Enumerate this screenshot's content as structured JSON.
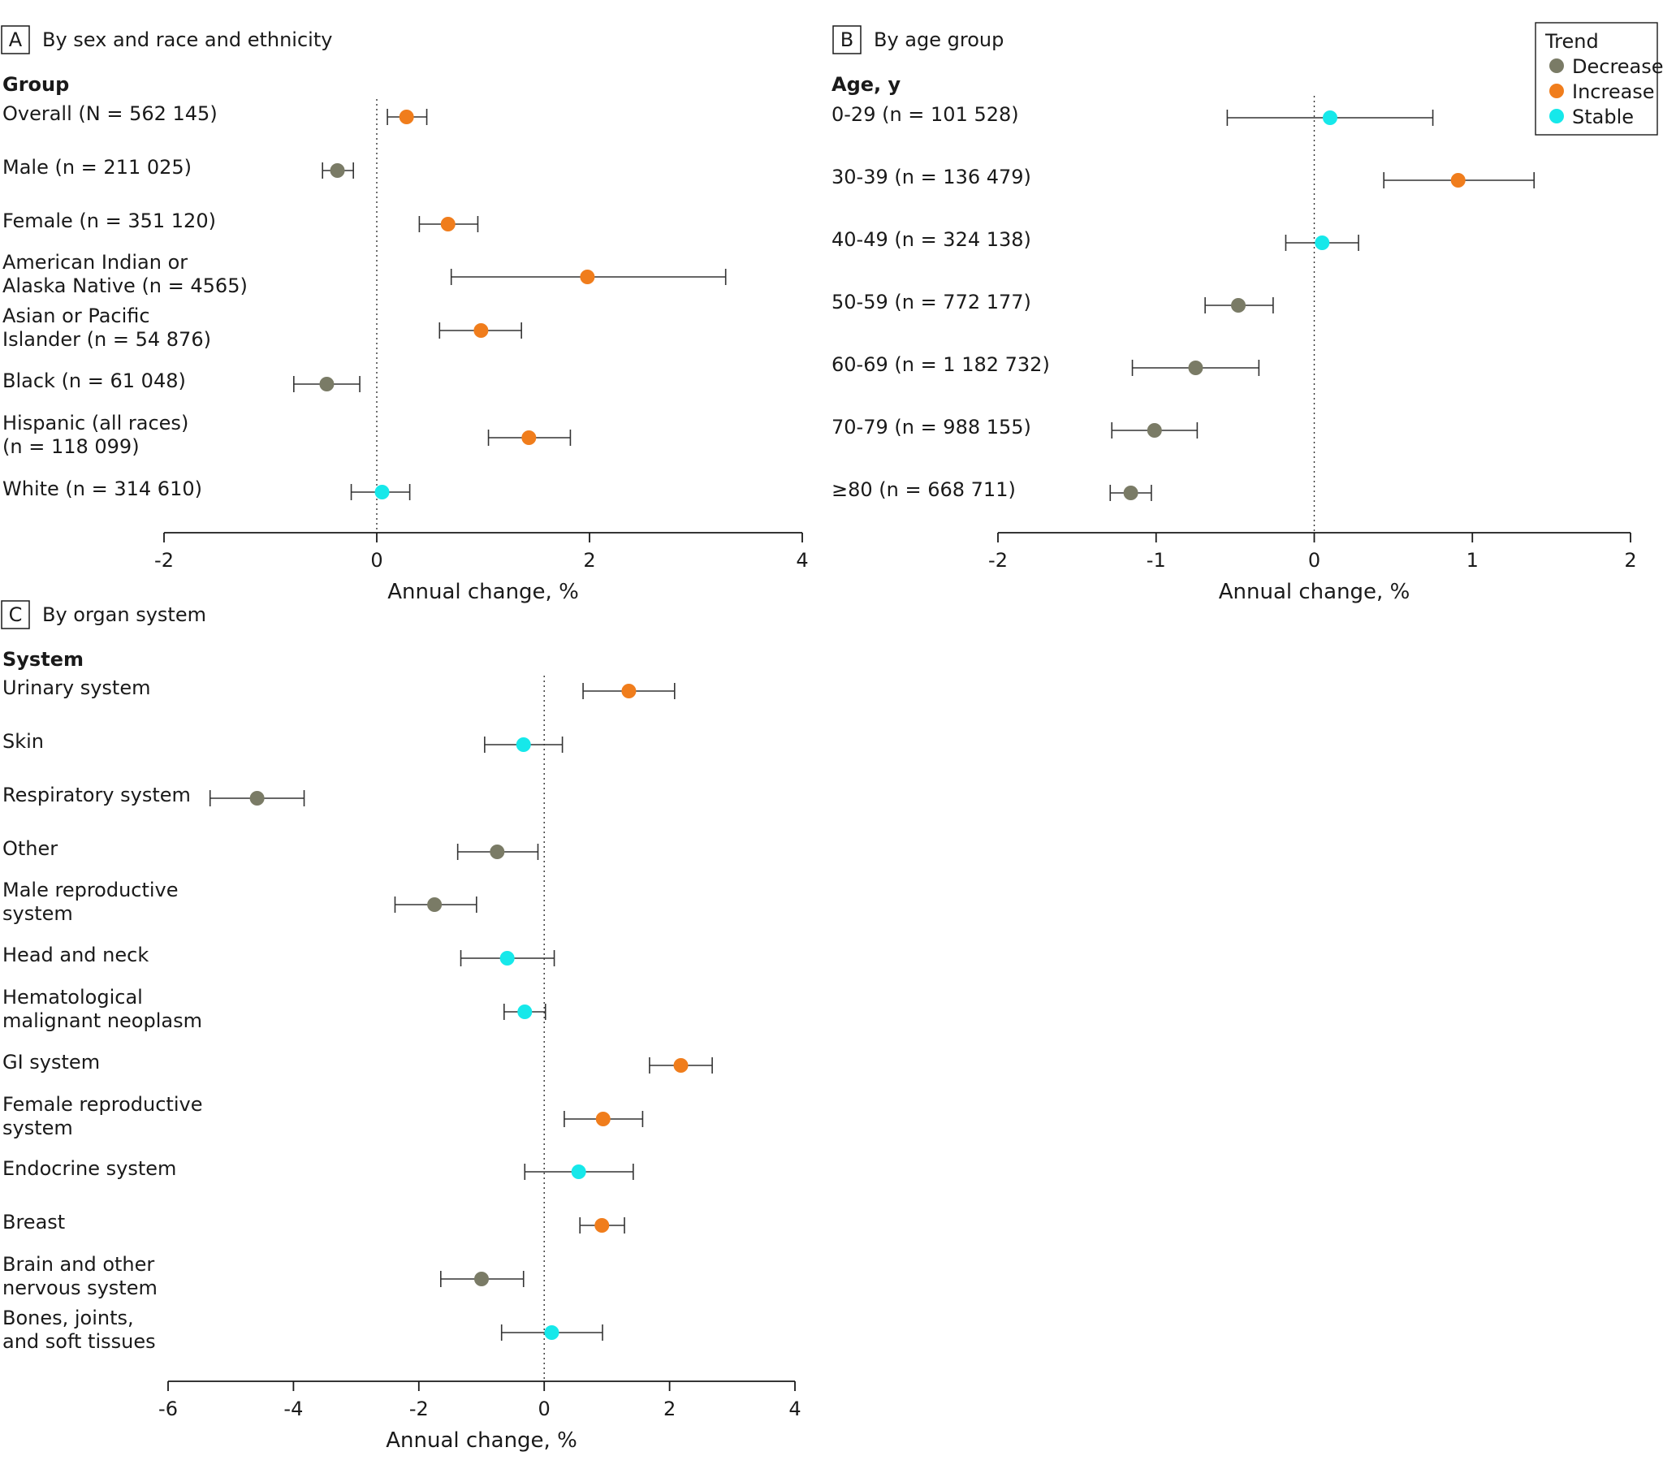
{
  "colors": {
    "Decrease": "#7a7b66",
    "Increase": "#f07d1c",
    "Stable": "#16e8ea"
  },
  "legend": {
    "title": "Trend",
    "items": [
      "Decrease",
      "Increase",
      "Stable"
    ]
  },
  "chart_data": [
    {
      "id": "A",
      "type": "forest",
      "panel_letter": "A",
      "title": "By sex and race and ethnicity",
      "row_header": "Group",
      "xlabel": "Annual change, %",
      "xlim": [
        -2,
        4
      ],
      "xticks": [
        -2,
        0,
        2,
        4
      ],
      "xtick_labels": [
        "-2",
        "0",
        "2",
        "4"
      ],
      "rows": [
        {
          "label": [
            "Overall (N = 562 145)"
          ],
          "estimate": 0.28,
          "lower": 0.1,
          "upper": 0.47,
          "trend": "Increase"
        },
        {
          "label": [
            "Male (n = 211 025)"
          ],
          "estimate": -0.37,
          "lower": -0.51,
          "upper": -0.22,
          "trend": "Decrease"
        },
        {
          "label": [
            "Female (n = 351 120)"
          ],
          "estimate": 0.67,
          "lower": 0.4,
          "upper": 0.95,
          "trend": "Increase"
        },
        {
          "label": [
            "American Indian or",
            "Alaska Native (n = 4565)"
          ],
          "estimate": 1.98,
          "lower": 0.7,
          "upper": 3.28,
          "trend": "Increase"
        },
        {
          "label": [
            "Asian or Pacific",
            "Islander (n = 54 876)"
          ],
          "estimate": 0.98,
          "lower": 0.59,
          "upper": 1.36,
          "trend": "Increase"
        },
        {
          "label": [
            "Black (n = 61 048)"
          ],
          "estimate": -0.47,
          "lower": -0.78,
          "upper": -0.16,
          "trend": "Decrease"
        },
        {
          "label": [
            "Hispanic (all races)",
            "(n = 118 099)"
          ],
          "estimate": 1.43,
          "lower": 1.05,
          "upper": 1.82,
          "trend": "Increase"
        },
        {
          "label": [
            "White (n = 314 610)"
          ],
          "estimate": 0.05,
          "lower": -0.24,
          "upper": 0.31,
          "trend": "Stable"
        }
      ]
    },
    {
      "id": "B",
      "type": "forest",
      "panel_letter": "B",
      "title": "By age group",
      "row_header": "Age, y",
      "xlabel": "Annual change, %",
      "xlim": [
        -2,
        2
      ],
      "xticks": [
        -2,
        -1,
        0,
        1,
        2
      ],
      "xtick_labels": [
        "-2",
        "-1",
        "0",
        "1",
        "2"
      ],
      "rows": [
        {
          "label": [
            "0-29 (n = 101 528)"
          ],
          "estimate": 0.1,
          "lower": -0.55,
          "upper": 0.75,
          "trend": "Stable"
        },
        {
          "label": [
            "30-39 (n = 136 479)"
          ],
          "estimate": 0.91,
          "lower": 0.44,
          "upper": 1.39,
          "trend": "Increase"
        },
        {
          "label": [
            "40-49 (n = 324 138)"
          ],
          "estimate": 0.05,
          "lower": -0.18,
          "upper": 0.28,
          "trend": "Stable"
        },
        {
          "label": [
            "50-59 (n = 772 177)"
          ],
          "estimate": -0.48,
          "lower": -0.69,
          "upper": -0.26,
          "trend": "Decrease"
        },
        {
          "label": [
            "60-69 (n = 1 182 732)"
          ],
          "estimate": -0.75,
          "lower": -1.15,
          "upper": -0.35,
          "trend": "Decrease"
        },
        {
          "label": [
            "70-79 (n = 988 155)"
          ],
          "estimate": -1.01,
          "lower": -1.28,
          "upper": -0.74,
          "trend": "Decrease"
        },
        {
          "label": [
            "≥80 (n = 668 711)"
          ],
          "estimate": -1.16,
          "lower": -1.29,
          "upper": -1.03,
          "trend": "Decrease"
        }
      ]
    },
    {
      "id": "C",
      "type": "forest",
      "panel_letter": "C",
      "title": "By organ system",
      "row_header": "System",
      "xlabel": "Annual change, %",
      "xlim": [
        -6,
        4
      ],
      "xticks": [
        -6,
        -4,
        -2,
        0,
        2,
        4
      ],
      "xtick_labels": [
        "-6",
        "-4",
        "-2",
        "0",
        "2",
        "4"
      ],
      "rows": [
        {
          "label": [
            "Urinary system"
          ],
          "estimate": 1.35,
          "lower": 0.62,
          "upper": 2.08,
          "trend": "Increase"
        },
        {
          "label": [
            "Skin"
          ],
          "estimate": -0.33,
          "lower": -0.95,
          "upper": 0.29,
          "trend": "Stable"
        },
        {
          "label": [
            "Respiratory system"
          ],
          "estimate": -4.58,
          "lower": -5.33,
          "upper": -3.83,
          "trend": "Decrease"
        },
        {
          "label": [
            "Other"
          ],
          "estimate": -0.75,
          "lower": -1.38,
          "upper": -0.1,
          "trend": "Decrease"
        },
        {
          "label": [
            "Male reproductive",
            "system"
          ],
          "estimate": -1.75,
          "lower": -2.38,
          "upper": -1.08,
          "trend": "Decrease"
        },
        {
          "label": [
            "Head and neck"
          ],
          "estimate": -0.59,
          "lower": -1.33,
          "upper": 0.16,
          "trend": "Stable"
        },
        {
          "label": [
            "Hematological",
            "malignant neoplasm"
          ],
          "estimate": -0.31,
          "lower": -0.64,
          "upper": 0.02,
          "trend": "Stable"
        },
        {
          "label": [
            "GI system"
          ],
          "estimate": 2.18,
          "lower": 1.68,
          "upper": 2.68,
          "trend": "Increase"
        },
        {
          "label": [
            "Female reproductive",
            "system"
          ],
          "estimate": 0.94,
          "lower": 0.32,
          "upper": 1.57,
          "trend": "Increase"
        },
        {
          "label": [
            "Endocrine system"
          ],
          "estimate": 0.55,
          "lower": -0.31,
          "upper": 1.42,
          "trend": "Stable"
        },
        {
          "label": [
            "Breast"
          ],
          "estimate": 0.92,
          "lower": 0.57,
          "upper": 1.28,
          "trend": "Increase"
        },
        {
          "label": [
            "Brain and other",
            "nervous system"
          ],
          "estimate": -1.0,
          "lower": -1.65,
          "upper": -0.33,
          "trend": "Decrease"
        },
        {
          "label": [
            "Bones, joints,",
            "and soft tissues"
          ],
          "estimate": 0.12,
          "lower": -0.68,
          "upper": 0.93,
          "trend": "Stable"
        }
      ]
    }
  ]
}
